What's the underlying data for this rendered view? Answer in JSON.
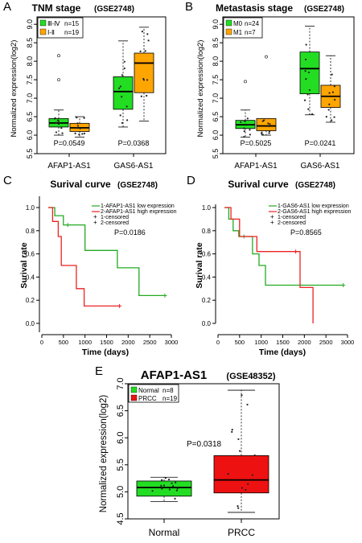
{
  "chart_data": [
    {
      "panel": "A",
      "type": "box",
      "title": "TNM stage",
      "subtitle": "(GSE2748)",
      "ylabel": "Normalized expression(log2)",
      "ylim": [
        5.5,
        9.2
      ],
      "yticks": [
        "5.5",
        "6.0",
        "6.5",
        "7.0",
        "7.5",
        "8.0",
        "8.5",
        "9.0"
      ],
      "categories": [
        "AFAP1-AS1",
        "GAS6-AS1"
      ],
      "legend": [
        {
          "label": "Ⅲ-Ⅳ",
          "n": "n=15",
          "color": "#22dd22"
        },
        {
          "label": "Ⅰ-Ⅱ",
          "n": "n=19",
          "color": "#ffa500"
        }
      ],
      "pvalues": [
        "P=0.0549",
        "P=0.0368"
      ],
      "boxes": [
        {
          "cat": 0,
          "group": 0,
          "q1": 6.22,
          "median": 6.33,
          "q3": 6.45,
          "lo": 6.0,
          "hi": 6.68,
          "out": [
            7.5,
            8.15
          ]
        },
        {
          "cat": 0,
          "group": 1,
          "q1": 6.1,
          "median": 6.2,
          "q3": 6.32,
          "lo": 5.95,
          "hi": 6.5,
          "out": []
        },
        {
          "cat": 1,
          "group": 0,
          "q1": 6.7,
          "median": 7.18,
          "q3": 7.58,
          "lo": 6.22,
          "hi": 8.55,
          "out": []
        },
        {
          "cat": 1,
          "group": 1,
          "q1": 7.15,
          "median": 7.95,
          "q3": 8.22,
          "lo": 6.38,
          "hi": 8.92,
          "out": []
        }
      ]
    },
    {
      "panel": "B",
      "type": "box",
      "title": "Metastasis stage",
      "subtitle": "(GSE2748)",
      "ylabel": "Normalized expression(log2)",
      "ylim": [
        5.5,
        9.2
      ],
      "yticks": [
        "5.5",
        "6.0",
        "6.5",
        "7.0",
        "7.5",
        "8.0",
        "8.5",
        "9.0"
      ],
      "categories": [
        "AFAP1-AS1",
        "GAS6-AS1"
      ],
      "legend": [
        {
          "label": "M0",
          "n": "n=24",
          "color": "#22dd22"
        },
        {
          "label": "M1",
          "n": "n=7",
          "color": "#ffa500"
        }
      ],
      "pvalues": [
        "P=0.5025",
        "P=0.0241"
      ],
      "boxes": [
        {
          "cat": 0,
          "group": 0,
          "q1": 6.18,
          "median": 6.28,
          "q3": 6.4,
          "lo": 5.95,
          "hi": 6.68,
          "out": [
            7.45
          ]
        },
        {
          "cat": 0,
          "group": 1,
          "q1": 6.12,
          "median": 6.25,
          "q3": 6.45,
          "lo": 6.0,
          "hi": 6.45,
          "out": [
            8.12
          ]
        },
        {
          "cat": 1,
          "group": 0,
          "q1": 7.12,
          "median": 7.8,
          "q3": 8.25,
          "lo": 6.55,
          "hi": 8.95,
          "out": []
        },
        {
          "cat": 1,
          "group": 1,
          "q1": 6.75,
          "median": 7.05,
          "q3": 7.35,
          "lo": 6.35,
          "hi": 8.15,
          "out": []
        }
      ]
    },
    {
      "panel": "C",
      "type": "line",
      "title": "Surival curve",
      "subtitle": "(GSE2748)",
      "xlabel": "Time (days)",
      "ylabel": "Surival rate",
      "xlim": [
        0,
        3000
      ],
      "ylim": [
        0,
        1.0
      ],
      "xticks": [
        "0",
        "500",
        "1000",
        "1500",
        "2000",
        "2500",
        "3000"
      ],
      "yticks": [
        "0.0",
        "0.2",
        "0.4",
        "0.6",
        "0.8",
        "1.0"
      ],
      "legend": [
        {
          "label": "1-AFAP1-AS1 low expression",
          "color": "#22aa22"
        },
        {
          "label": "2-AFAP1-AS1 high expression",
          "color": "#ee2222"
        },
        {
          "label": "1-censored",
          "color": "#22aa22"
        },
        {
          "label": "2-censored",
          "color": "#ee2222"
        }
      ],
      "pvalue": "P=0.0186",
      "series": [
        {
          "color": "#22aa22",
          "points": [
            [
              150,
              1.0
            ],
            [
              300,
              1.0
            ],
            [
              300,
              0.93
            ],
            [
              500,
              0.93
            ],
            [
              500,
              0.85
            ],
            [
              1000,
              0.85
            ],
            [
              1000,
              0.63
            ],
            [
              1750,
              0.63
            ],
            [
              1750,
              0.48
            ],
            [
              2250,
              0.48
            ],
            [
              2250,
              0.24
            ],
            [
              2850,
              0.24
            ]
          ],
          "censored": [
            [
              600,
              0.85
            ],
            [
              2850,
              0.24
            ]
          ]
        },
        {
          "color": "#ee2222",
          "points": [
            [
              150,
              1.0
            ],
            [
              250,
              1.0
            ],
            [
              250,
              0.88
            ],
            [
              380,
              0.88
            ],
            [
              380,
              0.75
            ],
            [
              450,
              0.75
            ],
            [
              450,
              0.5
            ],
            [
              800,
              0.5
            ],
            [
              800,
              0.3
            ],
            [
              980,
              0.3
            ],
            [
              980,
              0.15
            ],
            [
              1800,
              0.15
            ]
          ],
          "censored": [
            [
              1800,
              0.15
            ]
          ]
        }
      ]
    },
    {
      "panel": "D",
      "type": "line",
      "title": "Surival curve",
      "subtitle": "(GSE2748)",
      "xlabel": "Time (days)",
      "ylabel": "Surival rate",
      "xlim": [
        0,
        3000
      ],
      "ylim": [
        0,
        1.0
      ],
      "xticks": [
        "0",
        "500",
        "1000",
        "1500",
        "2000",
        "2500",
        "3000"
      ],
      "yticks": [
        "0.0",
        "0.2",
        "0.4",
        "0.6",
        "0.8",
        "1.0"
      ],
      "legend": [
        {
          "label": "1-GAS6-AS1 low expression",
          "color": "#22aa22"
        },
        {
          "label": "2-GAS6-AS1 high expression",
          "color": "#ee2222"
        },
        {
          "label": "1-censored",
          "color": "#22aa22"
        },
        {
          "label": "2-censored",
          "color": "#ee2222"
        }
      ],
      "pvalue": "P=0.8565",
      "series": [
        {
          "color": "#22aa22",
          "points": [
            [
              150,
              1.0
            ],
            [
              250,
              1.0
            ],
            [
              250,
              0.9
            ],
            [
              350,
              0.9
            ],
            [
              350,
              0.8
            ],
            [
              480,
              0.8
            ],
            [
              480,
              0.75
            ],
            [
              800,
              0.75
            ],
            [
              800,
              0.6
            ],
            [
              950,
              0.6
            ],
            [
              950,
              0.5
            ],
            [
              1100,
              0.5
            ],
            [
              1100,
              0.33
            ],
            [
              2900,
              0.33
            ]
          ],
          "censored": [
            [
              600,
              0.75
            ],
            [
              2900,
              0.33
            ]
          ]
        },
        {
          "color": "#ee2222",
          "points": [
            [
              150,
              1.0
            ],
            [
              300,
              1.0
            ],
            [
              300,
              0.9
            ],
            [
              500,
              0.9
            ],
            [
              500,
              0.75
            ],
            [
              900,
              0.75
            ],
            [
              900,
              0.62
            ],
            [
              1900,
              0.62
            ],
            [
              1900,
              0.31
            ],
            [
              2200,
              0.31
            ],
            [
              2200,
              0.0
            ]
          ],
          "censored": [
            [
              1800,
              0.62
            ]
          ]
        }
      ]
    },
    {
      "panel": "E",
      "type": "box",
      "title": "AFAP1-AS1",
      "subtitle": "(GSE48352)",
      "ylabel": "Normalized expression(log2)",
      "ylim": [
        4.5,
        7.0
      ],
      "yticks": [
        "4.5",
        "5.0",
        "5.5",
        "6.0",
        "6.5",
        "7.0"
      ],
      "categories": [
        "Normal",
        "PRCC"
      ],
      "legend": [
        {
          "label": "Normal",
          "n": "n=8",
          "color": "#22dd22"
        },
        {
          "label": "PRCC",
          "n": "n=19",
          "color": "#ee1111"
        }
      ],
      "pvalues": [
        "P=0.0318"
      ],
      "boxes": [
        {
          "cat": 0,
          "group": 0,
          "q1": 4.92,
          "median": 5.08,
          "q3": 5.2,
          "lo": 4.82,
          "hi": 5.27,
          "out": []
        },
        {
          "cat": 1,
          "group": 1,
          "q1": 4.98,
          "median": 5.22,
          "q3": 5.67,
          "lo": 4.62,
          "hi": 6.88,
          "out": []
        }
      ]
    }
  ]
}
